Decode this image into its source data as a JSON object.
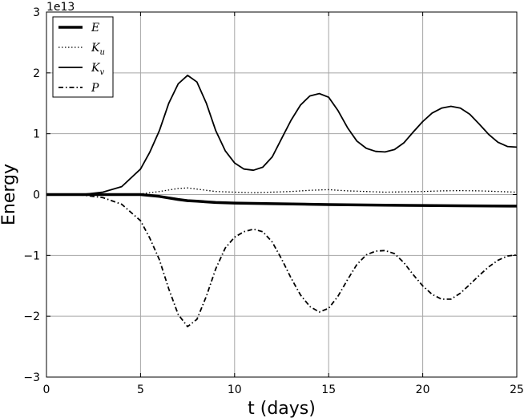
{
  "chart_data": {
    "type": "line",
    "title": "",
    "xlabel": "t (days)",
    "ylabel": "Energy",
    "y_offset_label": "1e13",
    "xlim": [
      0,
      25
    ],
    "ylim": [
      -3,
      3
    ],
    "x_ticks": [
      0,
      5,
      10,
      15,
      20,
      25
    ],
    "y_ticks": [
      -3,
      -2,
      -1,
      0,
      1,
      2,
      3
    ],
    "y_tick_labels": [
      "−3",
      "−2",
      "−1",
      "0",
      "1",
      "2",
      "3"
    ],
    "grid": true,
    "legend_position": "top-left",
    "series": [
      {
        "name": "E",
        "style": "solid-thick",
        "color": "#000000",
        "points": [
          [
            0,
            0
          ],
          [
            2,
            0
          ],
          [
            4,
            0
          ],
          [
            5,
            0
          ],
          [
            6,
            -0.03
          ],
          [
            7,
            -0.08
          ],
          [
            7.5,
            -0.1
          ],
          [
            8,
            -0.11
          ],
          [
            9,
            -0.13
          ],
          [
            10,
            -0.14
          ],
          [
            12,
            -0.15
          ],
          [
            14,
            -0.16
          ],
          [
            15,
            -0.165
          ],
          [
            18,
            -0.175
          ],
          [
            20,
            -0.18
          ],
          [
            22,
            -0.185
          ],
          [
            25,
            -0.19
          ]
        ]
      },
      {
        "name": "K_u",
        "style": "dotted",
        "color": "#000000",
        "points": [
          [
            0,
            0
          ],
          [
            2,
            0
          ],
          [
            4,
            0
          ],
          [
            5,
            0.01
          ],
          [
            6,
            0.05
          ],
          [
            7,
            0.1
          ],
          [
            7.5,
            0.11
          ],
          [
            8,
            0.09
          ],
          [
            9,
            0.05
          ],
          [
            10,
            0.04
          ],
          [
            11,
            0.03
          ],
          [
            12,
            0.04
          ],
          [
            13,
            0.05
          ],
          [
            14,
            0.07
          ],
          [
            15,
            0.08
          ],
          [
            16,
            0.06
          ],
          [
            17,
            0.05
          ],
          [
            18,
            0.04
          ],
          [
            19,
            0.045
          ],
          [
            20,
            0.05
          ],
          [
            21,
            0.06
          ],
          [
            22,
            0.065
          ],
          [
            23,
            0.06
          ],
          [
            24,
            0.05
          ],
          [
            25,
            0.04
          ]
        ]
      },
      {
        "name": "K_v",
        "style": "solid",
        "color": "#000000",
        "points": [
          [
            0,
            0
          ],
          [
            1,
            0
          ],
          [
            2,
            0.005
          ],
          [
            3,
            0.04
          ],
          [
            4,
            0.13
          ],
          [
            5,
            0.42
          ],
          [
            5.5,
            0.7
          ],
          [
            6,
            1.05
          ],
          [
            6.5,
            1.5
          ],
          [
            7,
            1.82
          ],
          [
            7.5,
            1.96
          ],
          [
            8,
            1.85
          ],
          [
            8.5,
            1.5
          ],
          [
            9,
            1.05
          ],
          [
            9.5,
            0.72
          ],
          [
            10,
            0.52
          ],
          [
            10.5,
            0.42
          ],
          [
            11,
            0.4
          ],
          [
            11.5,
            0.45
          ],
          [
            12,
            0.62
          ],
          [
            12.5,
            0.92
          ],
          [
            13,
            1.22
          ],
          [
            13.5,
            1.47
          ],
          [
            14,
            1.62
          ],
          [
            14.5,
            1.66
          ],
          [
            15,
            1.6
          ],
          [
            15.5,
            1.38
          ],
          [
            16,
            1.1
          ],
          [
            16.5,
            0.88
          ],
          [
            17,
            0.76
          ],
          [
            17.5,
            0.71
          ],
          [
            18,
            0.7
          ],
          [
            18.5,
            0.74
          ],
          [
            19,
            0.85
          ],
          [
            19.5,
            1.03
          ],
          [
            20,
            1.2
          ],
          [
            20.5,
            1.34
          ],
          [
            21,
            1.42
          ],
          [
            21.5,
            1.45
          ],
          [
            22,
            1.42
          ],
          [
            22.5,
            1.32
          ],
          [
            23,
            1.16
          ],
          [
            23.5,
            0.99
          ],
          [
            24,
            0.86
          ],
          [
            24.5,
            0.79
          ],
          [
            25,
            0.78
          ]
        ]
      },
      {
        "name": "P",
        "style": "dash-dot",
        "color": "#000000",
        "points": [
          [
            0,
            0
          ],
          [
            1,
            0
          ],
          [
            2,
            -0.01
          ],
          [
            3,
            -0.05
          ],
          [
            4,
            -0.16
          ],
          [
            5,
            -0.43
          ],
          [
            5.5,
            -0.72
          ],
          [
            6,
            -1.07
          ],
          [
            6.5,
            -1.55
          ],
          [
            7,
            -1.97
          ],
          [
            7.5,
            -2.17
          ],
          [
            8,
            -2.05
          ],
          [
            8.5,
            -1.67
          ],
          [
            9,
            -1.22
          ],
          [
            9.5,
            -0.88
          ],
          [
            10,
            -0.7
          ],
          [
            10.5,
            -0.61
          ],
          [
            11,
            -0.57
          ],
          [
            11.5,
            -0.61
          ],
          [
            12,
            -0.78
          ],
          [
            12.5,
            -1.06
          ],
          [
            13,
            -1.37
          ],
          [
            13.5,
            -1.65
          ],
          [
            14,
            -1.84
          ],
          [
            14.5,
            -1.93
          ],
          [
            15,
            -1.87
          ],
          [
            15.5,
            -1.67
          ],
          [
            16,
            -1.4
          ],
          [
            16.5,
            -1.15
          ],
          [
            17,
            -0.99
          ],
          [
            17.5,
            -0.93
          ],
          [
            18,
            -0.92
          ],
          [
            18.5,
            -0.97
          ],
          [
            19,
            -1.12
          ],
          [
            19.5,
            -1.32
          ],
          [
            20,
            -1.5
          ],
          [
            20.5,
            -1.64
          ],
          [
            21,
            -1.72
          ],
          [
            21.5,
            -1.72
          ],
          [
            22,
            -1.62
          ],
          [
            22.5,
            -1.48
          ],
          [
            23,
            -1.33
          ],
          [
            23.5,
            -1.19
          ],
          [
            24,
            -1.08
          ],
          [
            24.5,
            -1.01
          ],
          [
            25,
            -0.99
          ]
        ]
      }
    ]
  }
}
